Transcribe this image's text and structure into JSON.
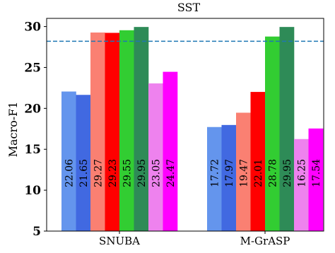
{
  "chart_data": {
    "type": "bar",
    "title": "SST",
    "xlabel": "",
    "ylabel": "Macro-F1",
    "ylim": [
      5,
      31
    ],
    "yticks": [
      "5",
      "10",
      "15",
      "20",
      "25",
      "30"
    ],
    "categories": [
      "SNUBA",
      "M-GrASP"
    ],
    "reference_line": {
      "value": 28.2,
      "style": "dashed",
      "color": "#1f77b4"
    },
    "series": [
      {
        "color": "#6495ED",
        "values": [
          22.06,
          17.72
        ],
        "labels": [
          "22.06",
          "17.72"
        ]
      },
      {
        "color": "#4169E1",
        "values": [
          21.65,
          17.97
        ],
        "labels": [
          "21.65",
          "17.97"
        ]
      },
      {
        "color": "#FA8072",
        "values": [
          29.27,
          19.47
        ],
        "labels": [
          "29.27",
          "19.47"
        ]
      },
      {
        "color": "#FF0000",
        "values": [
          29.23,
          22.01
        ],
        "labels": [
          "29.23",
          "22.01"
        ]
      },
      {
        "color": "#32CD32",
        "values": [
          29.55,
          28.78
        ],
        "labels": [
          "29.55",
          "28.78"
        ]
      },
      {
        "color": "#2E8B57",
        "values": [
          29.95,
          29.95
        ],
        "labels": [
          "29.95",
          "29.95"
        ]
      },
      {
        "color": "#EE82EE",
        "values": [
          23.05,
          16.25
        ],
        "labels": [
          "23.05",
          "16.25"
        ]
      },
      {
        "color": "#FF00FF",
        "values": [
          24.47,
          17.54
        ],
        "labels": [
          "24.47",
          "17.54"
        ]
      }
    ]
  }
}
